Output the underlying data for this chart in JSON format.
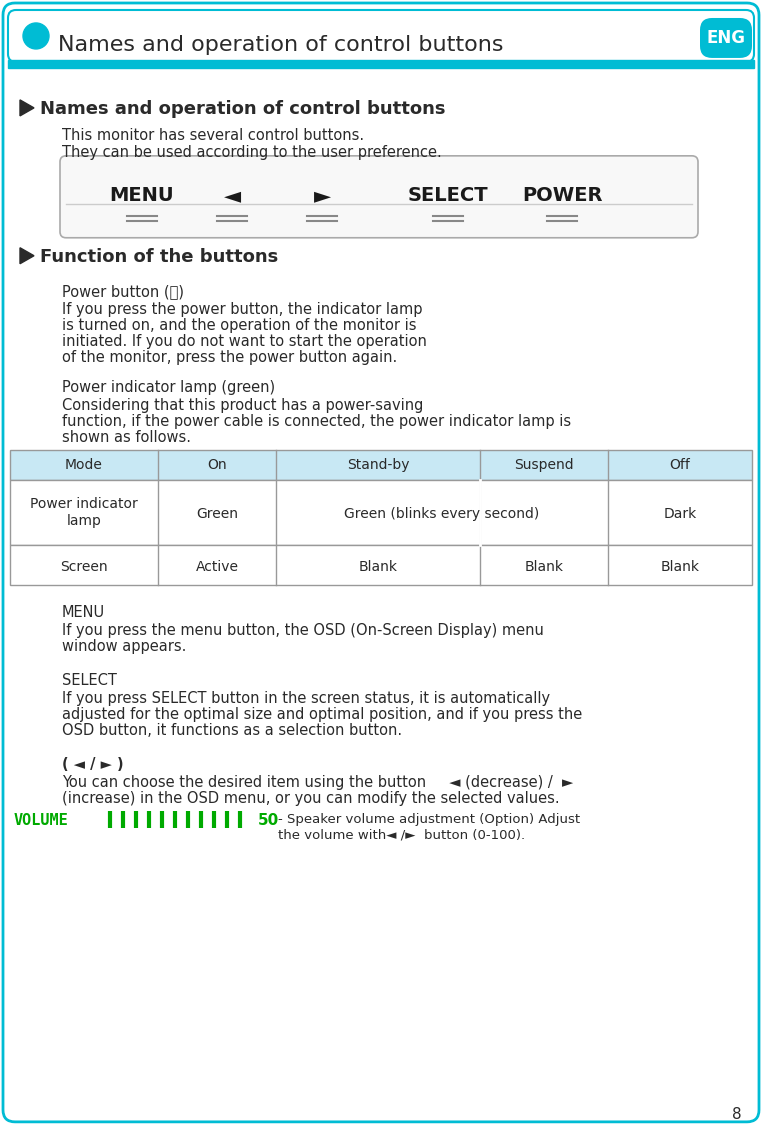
{
  "page_bg": "#ffffff",
  "border_color": "#00bcd4",
  "cyan_color": "#00bcd4",
  "header_title": "Names and operation of control buttons",
  "header_title_color": "#2a2a2a",
  "eng_text": "ENG",
  "title_main": "Names and operation of control buttons",
  "intro_line1": "This monitor has several control buttons.",
  "intro_line2": "They can be used according to the user preference.",
  "button_labels": [
    "MENU",
    "◄",
    "►",
    "SELECT",
    "POWER"
  ],
  "section2_title": "Function of the buttons",
  "power_heading": "Power button (⏻)",
  "power_lines": [
    "If you press the power button, the indicator lamp",
    "is turned on, and the operation of the monitor is",
    "initiated. If you do not want to start the operation",
    "of the monitor, press the power button again."
  ],
  "lamp_heading": "Power indicator lamp (green)",
  "lamp_lines": [
    "Considering that this product has a power-saving",
    "function, if the power cable is connected, the power indicator lamp is",
    "shown as follows."
  ],
  "table_header_bg": "#c8e8f4",
  "table_border": "#999999",
  "table_headers": [
    "Mode",
    "On",
    "Stand-by",
    "Suspend",
    "Off"
  ],
  "table_row1_col0": "Power indicator\nlamp",
  "table_row1_data": [
    "Green",
    "Green (blinks every second)",
    "Dark"
  ],
  "table_row2_data": [
    "Screen",
    "Active",
    "Blank",
    "Blank",
    "Blank"
  ],
  "menu_heading": "MENU",
  "menu_lines": [
    "If you press the menu button, the OSD (On-Screen Display) menu",
    "window appears."
  ],
  "select_heading": "SELECT",
  "select_lines": [
    "If you press SELECT button in the screen status, it is automatically",
    "adjusted for the optimal size and optimal position, and if you press the",
    "OSD button, it functions as a selection button."
  ],
  "arrow_heading": "( ◄ / ► )",
  "arrow_line1": "You can choose the desired item using the button     ◄ (decrease) /  ►",
  "arrow_line2": "(increase) in the OSD menu, or you can modify the selected values.",
  "volume_label": "VOLUME",
  "volume_bars": 11,
  "volume_number": "50",
  "volume_text1": "- Speaker volume adjustment (Option) Adjust",
  "volume_text2": "the volume with◄ /►  button (0-100).",
  "page_number": "8",
  "green_color": "#00aa00",
  "text_color": "#2a2a2a"
}
